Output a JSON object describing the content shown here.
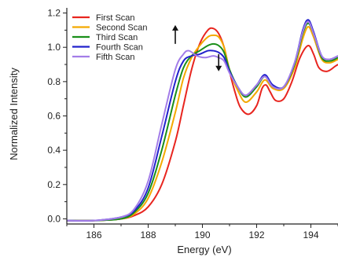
{
  "chart_data": {
    "type": "line",
    "xlabel": "Energy (eV)",
    "ylabel": "Normalized Intensity",
    "xlim": [
      185,
      195
    ],
    "ylim": [
      -0.03,
      1.23
    ],
    "xticks": [
      186,
      188,
      190,
      192,
      194
    ],
    "yticks": [
      0.0,
      0.2,
      0.4,
      0.6,
      0.8,
      1.0,
      1.2
    ],
    "xtick_labels": [
      "186",
      "188",
      "190",
      "192",
      "194"
    ],
    "ytick_labels": [
      "0.0",
      "0.2",
      "0.4",
      "0.6",
      "0.8",
      "1.0",
      "1.2"
    ],
    "grid": false,
    "legend": {
      "position": "top-left"
    },
    "annotations": [
      {
        "type": "arrow",
        "direction": "up",
        "x": 189.0,
        "y_from": 1.02,
        "y_to": 1.13
      },
      {
        "type": "arrow",
        "direction": "down",
        "x": 190.6,
        "y_from": 0.96,
        "y_to": 0.86
      }
    ],
    "series": [
      {
        "name": "First Scan",
        "color": "#e8251f",
        "x": [
          185,
          186,
          187,
          187.5,
          188,
          188.5,
          189,
          189.3,
          189.6,
          189.9,
          190.2,
          190.4,
          190.6,
          190.8,
          191,
          191.2,
          191.4,
          191.7,
          192,
          192.2,
          192.35,
          192.5,
          192.7,
          193,
          193.3,
          193.6,
          193.9,
          194.1,
          194.3,
          194.6,
          194.9,
          195
        ],
        "y": [
          -0.01,
          -0.01,
          0.0,
          0.02,
          0.07,
          0.2,
          0.45,
          0.66,
          0.87,
          1.02,
          1.1,
          1.11,
          1.08,
          1.0,
          0.86,
          0.74,
          0.65,
          0.61,
          0.66,
          0.76,
          0.78,
          0.74,
          0.69,
          0.7,
          0.8,
          0.94,
          1.01,
          0.96,
          0.88,
          0.86,
          0.89,
          0.9
        ]
      },
      {
        "name": "Second Scan",
        "color": "#f4a900",
        "x": [
          185,
          186,
          187,
          187.5,
          188,
          188.5,
          189,
          189.3,
          189.6,
          189.9,
          190.2,
          190.4,
          190.6,
          190.8,
          191,
          191.3,
          191.6,
          192,
          192.3,
          192.6,
          193,
          193.4,
          193.7,
          193.9,
          194.1,
          194.4,
          194.7,
          195
        ],
        "y": [
          -0.01,
          -0.01,
          0.0,
          0.03,
          0.12,
          0.33,
          0.62,
          0.82,
          0.94,
          1.01,
          1.06,
          1.07,
          1.06,
          1.0,
          0.87,
          0.75,
          0.68,
          0.74,
          0.81,
          0.76,
          0.76,
          0.88,
          1.05,
          1.12,
          1.06,
          0.93,
          0.91,
          0.93
        ]
      },
      {
        "name": "Third Scan",
        "color": "#1a8f1a",
        "x": [
          185,
          186,
          187,
          187.5,
          188,
          188.5,
          189,
          189.3,
          189.6,
          189.9,
          190.2,
          190.4,
          190.6,
          190.8,
          191,
          191.3,
          191.6,
          192,
          192.3,
          192.6,
          193,
          193.4,
          193.7,
          193.9,
          194.1,
          194.4,
          194.7,
          195
        ],
        "y": [
          -0.01,
          -0.01,
          0.0,
          0.04,
          0.15,
          0.4,
          0.72,
          0.88,
          0.95,
          0.98,
          1.01,
          1.02,
          1.01,
          0.97,
          0.87,
          0.77,
          0.71,
          0.77,
          0.83,
          0.77,
          0.77,
          0.9,
          1.08,
          1.14,
          1.08,
          0.94,
          0.92,
          0.94
        ]
      },
      {
        "name": "Fourth Scan",
        "color": "#2222cc",
        "x": [
          185,
          186,
          187,
          187.5,
          188,
          188.5,
          189,
          189.3,
          189.6,
          189.9,
          190.2,
          190.4,
          190.6,
          190.8,
          191,
          191.3,
          191.6,
          192,
          192.3,
          192.6,
          193,
          193.4,
          193.7,
          193.9,
          194.1,
          194.4,
          194.7,
          195
        ],
        "y": [
          -0.01,
          -0.01,
          0.01,
          0.05,
          0.18,
          0.48,
          0.8,
          0.92,
          0.95,
          0.96,
          0.98,
          0.98,
          0.97,
          0.94,
          0.86,
          0.77,
          0.72,
          0.78,
          0.84,
          0.78,
          0.77,
          0.91,
          1.1,
          1.16,
          1.09,
          0.95,
          0.93,
          0.95
        ]
      },
      {
        "name": "Fifth Scan",
        "color": "#a37de8",
        "x": [
          185,
          186,
          187,
          187.5,
          188,
          188.5,
          189,
          189.3,
          189.5,
          189.8,
          190.1,
          190.4,
          190.6,
          190.8,
          191,
          191.3,
          191.6,
          192,
          192.3,
          192.6,
          193,
          193.4,
          193.7,
          193.9,
          194.1,
          194.4,
          194.7,
          195
        ],
        "y": [
          -0.01,
          -0.01,
          0.01,
          0.06,
          0.22,
          0.55,
          0.87,
          0.96,
          0.98,
          0.95,
          0.94,
          0.95,
          0.94,
          0.92,
          0.85,
          0.77,
          0.72,
          0.78,
          0.83,
          0.77,
          0.77,
          0.91,
          1.09,
          1.15,
          1.08,
          0.95,
          0.93,
          0.95
        ]
      }
    ]
  }
}
